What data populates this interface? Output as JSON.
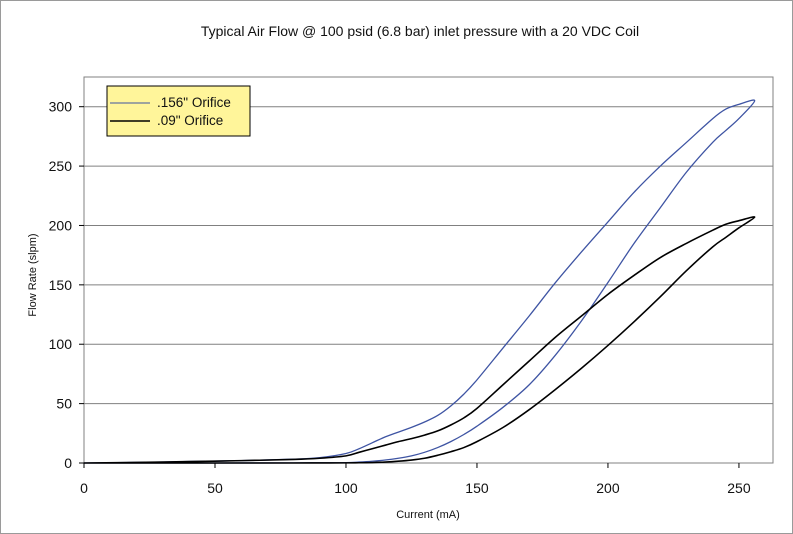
{
  "chart_data": {
    "type": "line",
    "title": "Typical Air Flow @ 100 psid (6.8 bar) inlet pressure with a 20 VDC Coil",
    "xlabel": "Current (mA)",
    "ylabel": "Flow Rate (slpm)",
    "xlim": [
      0,
      263
    ],
    "ylim": [
      0,
      325
    ],
    "xticks": [
      0,
      50,
      100,
      150,
      200,
      250
    ],
    "yticks": [
      0,
      50,
      100,
      150,
      200,
      250,
      300
    ],
    "grid": {
      "horizontal": true,
      "vertical": false
    },
    "legend": {
      "position": "top-left",
      "background": "#FFF59A"
    },
    "plot_background": "#ffffff",
    "series": [
      {
        "name": ".156\" Orifice",
        "color": "#3E54A3",
        "x": [
          0,
          20,
          40,
          60,
          80,
          90,
          100,
          105,
          110,
          115,
          120,
          125,
          130,
          135,
          140,
          145,
          150,
          160,
          170,
          180,
          190,
          200,
          210,
          220,
          230,
          240,
          245,
          250,
          256,
          250,
          245,
          240,
          230,
          220,
          210,
          200,
          190,
          180,
          170,
          160,
          150,
          145,
          140,
          135,
          130,
          125,
          120,
          115,
          110,
          105,
          100,
          90,
          80,
          60,
          40,
          20,
          0
        ],
        "y": [
          0,
          0.5,
          1.2,
          2,
          3.2,
          4.5,
          8,
          12,
          17,
          22,
          26,
          30,
          34.5,
          40,
          48,
          58,
          70,
          97,
          124,
          152,
          178,
          203,
          228,
          250,
          270,
          290,
          298,
          302,
          305,
          290,
          280,
          270,
          245,
          215,
          185,
          152,
          120,
          91,
          66,
          47,
          31,
          24,
          18,
          13,
          9,
          6,
          4,
          2.5,
          1.5,
          0.8,
          0.3,
          0.2,
          0.1,
          0.05,
          0,
          0,
          0
        ]
      },
      {
        "name": ".09\" Orifice",
        "color": "#000000",
        "x": [
          0,
          20,
          40,
          60,
          80,
          90,
          100,
          105,
          110,
          115,
          120,
          125,
          130,
          135,
          140,
          145,
          150,
          160,
          170,
          180,
          190,
          200,
          210,
          220,
          230,
          240,
          245,
          250,
          256,
          250,
          245,
          240,
          230,
          220,
          210,
          200,
          190,
          180,
          170,
          160,
          150,
          145,
          140,
          135,
          130,
          125,
          120,
          115,
          110,
          105,
          100,
          90,
          80,
          60,
          40,
          20,
          0
        ],
        "y": [
          0,
          0.5,
          1.2,
          2,
          3,
          4,
          6,
          9,
          12,
          15,
          18,
          20.5,
          23.5,
          27,
          32,
          38,
          46,
          66,
          86,
          106,
          124,
          142,
          158,
          173,
          185,
          196,
          201,
          204,
          207,
          198,
          190,
          182,
          162,
          140,
          119,
          99,
          80,
          62,
          45,
          30,
          18,
          13,
          9.5,
          6.5,
          4,
          2.5,
          1.5,
          0.8,
          0.4,
          0.2,
          0.1,
          0.05,
          0,
          0,
          0,
          0,
          0
        ]
      }
    ]
  }
}
